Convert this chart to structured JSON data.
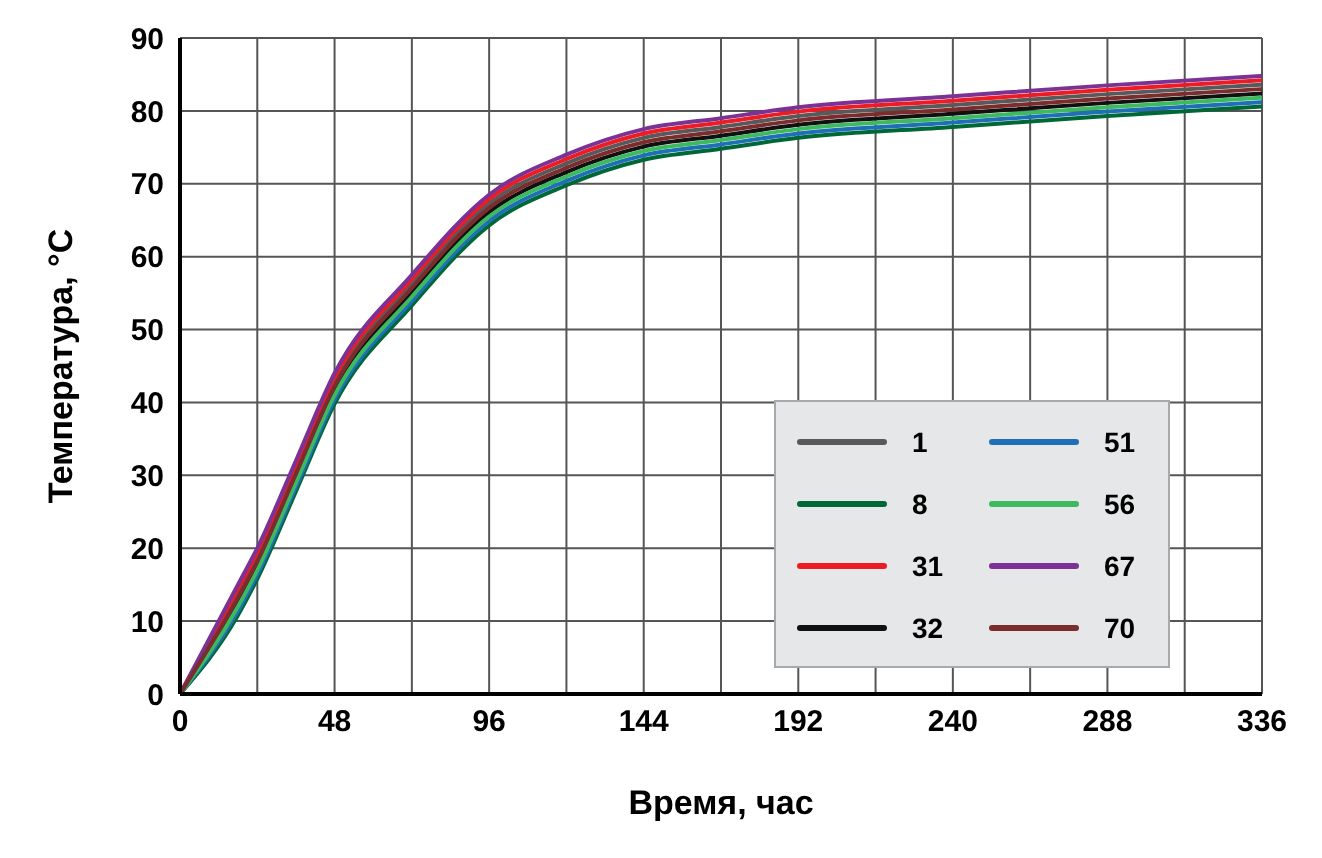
{
  "chart_data": {
    "type": "line",
    "xlabel": "Время, час",
    "ylabel": "Температура, °C",
    "x": [
      0,
      18,
      24,
      36,
      48,
      72,
      96,
      120,
      144,
      168,
      192,
      240,
      288,
      336
    ],
    "xlim": [
      0,
      336
    ],
    "xticks": [
      0,
      {
        "value": 24,
        "label": null
      },
      48,
      {
        "value": 72,
        "label": null
      },
      96,
      {
        "value": 120,
        "label": null
      },
      144,
      {
        "value": 168,
        "label": null
      },
      192,
      {
        "value": 216,
        "label": null
      },
      240,
      {
        "value": 264,
        "label": null
      },
      288,
      {
        "value": 312,
        "label": null
      },
      336
    ],
    "ylim": [
      0,
      90
    ],
    "yticks": [
      0,
      10,
      20,
      30,
      40,
      50,
      60,
      70,
      80,
      90
    ],
    "grid": true,
    "legend": "bottom right",
    "marker": "none",
    "line_style": "solid",
    "series": [
      {
        "name": "1",
        "color": "#58595b",
        "values": [
          0,
          13.8,
          18.8,
          30.8,
          42.8,
          56.3,
          67.3,
          72.8,
          76.3,
          77.8,
          79.3,
          80.8,
          82.3,
          83.6
        ]
      },
      {
        "name": "8",
        "color": "#006837",
        "values": [
          0,
          10.8,
          15.8,
          27.8,
          39.8,
          53.3,
          64.3,
          69.8,
          73.3,
          74.8,
          76.3,
          77.8,
          79.3,
          80.6
        ]
      },
      {
        "name": "31",
        "color": "#ed1c24",
        "values": [
          0,
          14.4,
          19.4,
          31.4,
          43.4,
          56.9,
          67.9,
          73.4,
          76.9,
          78.4,
          79.9,
          81.4,
          82.9,
          84.2
        ]
      },
      {
        "name": "32",
        "color": "#111111",
        "values": [
          0,
          12.6,
          17.6,
          29.6,
          41.6,
          55.1,
          66.1,
          71.6,
          75.1,
          76.6,
          78.1,
          79.6,
          81.1,
          82.4
        ]
      },
      {
        "name": "51",
        "color": "#1f6fb8",
        "values": [
          0,
          11.4,
          16.4,
          28.4,
          40.4,
          53.9,
          64.9,
          70.4,
          73.9,
          75.4,
          76.9,
          78.4,
          79.9,
          81.2
        ]
      },
      {
        "name": "56",
        "color": "#3dba5f",
        "values": [
          0,
          12,
          17,
          29,
          41,
          54.5,
          65.5,
          71,
          74.5,
          76,
          77.5,
          79,
          80.5,
          81.8
        ]
      },
      {
        "name": "67",
        "color": "#7b3294",
        "values": [
          0,
          15,
          20,
          32,
          44,
          57.5,
          68.5,
          74,
          77.5,
          79,
          80.5,
          82,
          83.5,
          84.8
        ]
      },
      {
        "name": "70",
        "color": "#7b2d2d",
        "values": [
          0,
          13.2,
          18.2,
          30.2,
          42.2,
          55.7,
          66.7,
          72.2,
          75.7,
          77.2,
          78.7,
          80.2,
          81.7,
          83
        ]
      }
    ]
  }
}
